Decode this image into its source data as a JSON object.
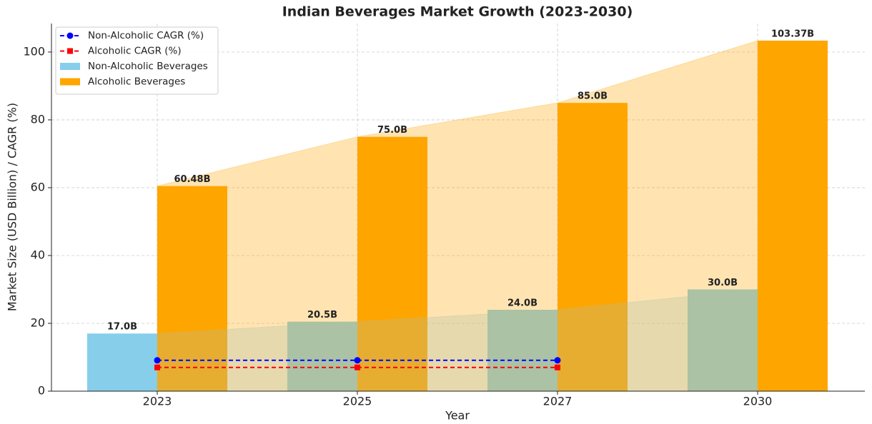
{
  "chart_data": {
    "type": "bar",
    "title": "Indian Beverages Market Growth (2023-2030)",
    "x_label": "Year",
    "y_label": "Market Size (USD Billion) / CAGR (%)",
    "categories": [
      "2023",
      "2025",
      "2027",
      "2030"
    ],
    "ylim": [
      0,
      108.4
    ],
    "yticks": [
      0,
      20,
      40,
      60,
      80,
      100
    ],
    "grid": true,
    "legend": "upper left",
    "series": [
      {
        "name": "Non-Alcoholic CAGR (%)",
        "type": "line",
        "marker": "circle",
        "color": "#0000ff",
        "values": [
          9.1,
          9.1,
          9.1,
          null
        ]
      },
      {
        "name": "Alcoholic CAGR (%)",
        "type": "line",
        "marker": "square",
        "color": "#ff0000",
        "values": [
          7.0,
          7.0,
          7.0,
          null
        ]
      },
      {
        "name": "Non-Alcoholic Beverages",
        "type": "bar",
        "area": true,
        "color": "#87ceeb",
        "values": [
          17.0,
          20.5,
          24.0,
          30.0
        ],
        "value_labels": [
          "17.0B",
          "20.5B",
          "24.0B",
          "30.0B"
        ]
      },
      {
        "name": "Alcoholic Beverages",
        "type": "bar",
        "area": true,
        "color": "#ffa500",
        "values": [
          60.48,
          75.0,
          85.0,
          103.37
        ],
        "value_labels": [
          "60.48B",
          "75.0B",
          "85.0B",
          "103.37B"
        ]
      }
    ]
  }
}
